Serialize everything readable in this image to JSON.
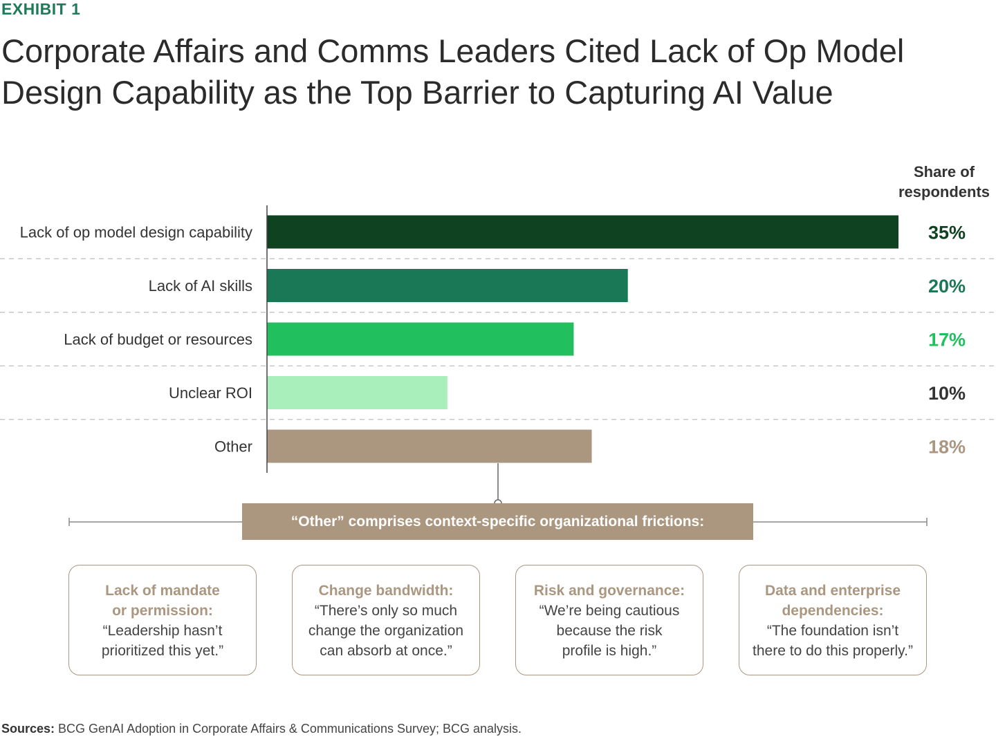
{
  "exhibit_label": "EXHIBIT 1",
  "title_line1": "Corporate Affairs and Comms Leaders Cited Lack of Op Model",
  "title_line2": "Design Capability as the Top Barrier to Capturing AI Value",
  "column_header_line1": "Share of",
  "column_header_line2": "respondents",
  "chart_data": {
    "type": "bar",
    "orientation": "horizontal",
    "categories": [
      "Lack of op model design capability",
      "Lack of AI skills",
      "Lack of budget or resources",
      "Unclear ROI",
      "Other"
    ],
    "values": [
      35,
      20,
      17,
      10,
      18
    ],
    "value_labels": [
      "35%",
      "20%",
      "17%",
      "10%",
      "18%"
    ],
    "bar_colors": [
      "#0e4221",
      "#1b7857",
      "#22bf5e",
      "#a8efbb",
      "#ab967f"
    ],
    "label_colors": [
      "#0e4221",
      "#1b7857",
      "#22bf5e",
      "#333333",
      "#ab967f"
    ],
    "xlim": [
      0,
      35
    ],
    "grid": "dashed separators between rows"
  },
  "other_banner": "“Other” comprises context-specific organizational frictions:",
  "boxes": [
    {
      "heading": "Lack of mandate|or permission:",
      "quote": "“Leadership hasn’t|prioritized this yet.”"
    },
    {
      "heading": "Change bandwidth:",
      "quote": "“There’s only so much|change the organization|can absorb at once.”"
    },
    {
      "heading": "Risk and governance:",
      "quote": "“We’re being cautious|because the risk|profile is high.”"
    },
    {
      "heading": "Data and enterprise|dependencies:",
      "quote": "“The foundation isn’t|there to do this properly.”"
    }
  ],
  "sources_label": "Sources:",
  "sources_text": "BCG GenAI Adoption in Corporate Affairs & Communications Survey; BCG analysis.",
  "colors": {
    "accent_green": "#1e7a58",
    "tan": "#ab967f"
  }
}
